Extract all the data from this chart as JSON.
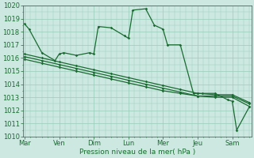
{
  "xlabel": "Pression niveau de la mer( hPa )",
  "bg_color": "#cce8e0",
  "grid_color": "#99ccbb",
  "line_color": "#1a6b32",
  "ylim": [
    1010,
    1020
  ],
  "day_labels": [
    "Mar",
    "Ven",
    "Dim",
    "Lun",
    "Mer",
    "Jeu",
    "Sam"
  ],
  "day_positions": [
    0,
    1,
    2,
    3,
    4,
    5,
    6
  ],
  "xlim": [
    -0.05,
    6.55
  ],
  "line1": {
    "x": [
      0.0,
      0.13,
      0.5,
      0.88,
      1.0,
      1.13,
      1.5,
      1.88,
      2.0,
      2.13,
      2.5,
      2.88,
      3.0,
      3.13,
      3.5,
      3.75,
      4.0,
      4.13,
      4.5,
      4.88,
      5.0,
      5.13,
      5.5,
      5.88,
      6.0,
      6.13,
      6.5
    ],
    "y": [
      1018.6,
      1018.2,
      1016.4,
      1015.8,
      1016.3,
      1016.4,
      1016.2,
      1016.4,
      1016.3,
      1018.4,
      1018.3,
      1017.7,
      1017.5,
      1019.65,
      1019.75,
      1018.5,
      1018.2,
      1017.0,
      1017.0,
      1013.3,
      1013.3,
      1013.3,
      1013.3,
      1012.8,
      1012.7,
      1010.5,
      1012.3
    ]
  },
  "line2": {
    "x": [
      0.0,
      0.5,
      1.0,
      1.5,
      2.0,
      2.5,
      3.0,
      3.5,
      4.0,
      4.5,
      5.0,
      5.5,
      6.0,
      6.5
    ],
    "y": [
      1016.1,
      1015.8,
      1015.5,
      1015.2,
      1014.9,
      1014.6,
      1014.3,
      1014.0,
      1013.7,
      1013.4,
      1013.1,
      1013.1,
      1013.1,
      1012.5
    ]
  },
  "line3": {
    "x": [
      0.0,
      0.5,
      1.0,
      1.5,
      2.0,
      2.5,
      3.0,
      3.5,
      4.0,
      4.5,
      5.0,
      5.5,
      6.0,
      6.5
    ],
    "y": [
      1015.9,
      1015.6,
      1015.3,
      1015.0,
      1014.7,
      1014.4,
      1014.1,
      1013.8,
      1013.5,
      1013.3,
      1013.1,
      1013.0,
      1013.0,
      1012.3
    ]
  },
  "line4": {
    "x": [
      0.0,
      0.5,
      1.0,
      1.5,
      2.0,
      2.5,
      3.0,
      3.5,
      4.0,
      4.5,
      5.0,
      5.5,
      6.0,
      6.5
    ],
    "y": [
      1016.3,
      1016.0,
      1015.7,
      1015.4,
      1015.1,
      1014.8,
      1014.5,
      1014.2,
      1013.9,
      1013.6,
      1013.3,
      1013.2,
      1013.2,
      1012.6
    ]
  }
}
